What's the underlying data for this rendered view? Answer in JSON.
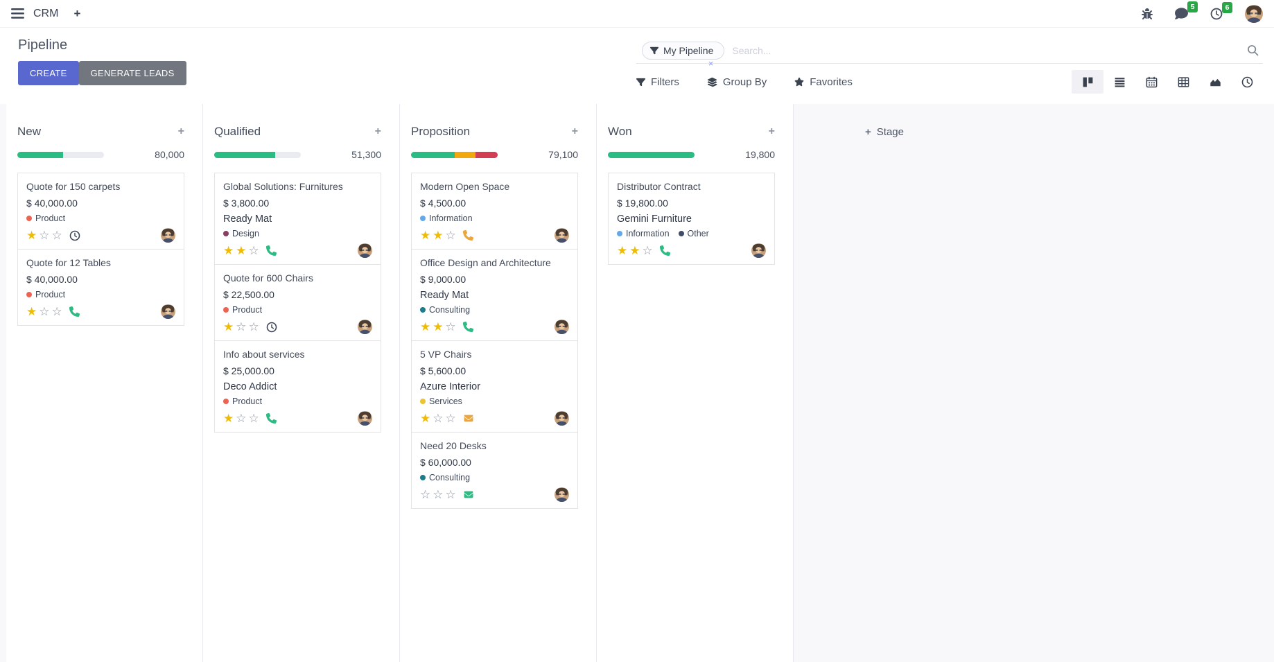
{
  "navbar": {
    "app_name": "CRM",
    "systray": {
      "messages_count": "5",
      "activities_count": "6"
    }
  },
  "control_panel": {
    "title": "Pipeline",
    "create_label": "CREATE",
    "generate_leads_label": "GENERATE LEADS",
    "search": {
      "facet_label": "My Pipeline",
      "placeholder": "Search..."
    },
    "filters_label": "Filters",
    "group_by_label": "Group By",
    "favorites_label": "Favorites",
    "view_switcher": [
      "kanban",
      "list",
      "calendar",
      "pivot",
      "graph",
      "activity"
    ],
    "active_view": "kanban"
  },
  "icons": {
    "plus": "+",
    "close_glyph": "×",
    "star_filled": "★",
    "star_empty": "☆"
  },
  "colors": {
    "accent": "#5968cf",
    "green": "#2abc83",
    "yellow": "#f0a80d",
    "red": "#d23f53",
    "star_gold": "#f0bc00",
    "badge_green": "#28a745"
  },
  "board": {
    "add_stage_label": "Stage",
    "columns": [
      {
        "name": "New",
        "total": "80,000",
        "progress": [
          {
            "color": "#2abc83",
            "pct": 53
          }
        ],
        "cards": [
          {
            "title": "Quote for 150 carpets",
            "amount": "$ 40,000.00",
            "tags": [
              {
                "label": "Product",
                "color": "#ec6352"
              }
            ],
            "stars": 1,
            "activity": {
              "icon": "clock-icon",
              "color": "#3d4657"
            }
          },
          {
            "title": "Quote for 12 Tables",
            "amount": "$ 40,000.00",
            "tags": [
              {
                "label": "Product",
                "color": "#ec6352"
              }
            ],
            "stars": 1,
            "activity": {
              "icon": "phone-icon",
              "color": "#2abc83"
            }
          }
        ]
      },
      {
        "name": "Qualified",
        "total": "51,300",
        "progress": [
          {
            "color": "#2abc83",
            "pct": 70
          }
        ],
        "cards": [
          {
            "title": "Global Solutions: Furnitures",
            "amount": "$ 3,800.00",
            "partner": "Ready Mat",
            "tags": [
              {
                "label": "Design",
                "color": "#8a3e63"
              }
            ],
            "stars": 2,
            "activity": {
              "icon": "phone-icon",
              "color": "#2abc83"
            }
          },
          {
            "title": "Quote for 600 Chairs",
            "amount": "$ 22,500.00",
            "tags": [
              {
                "label": "Product",
                "color": "#ec6352"
              }
            ],
            "stars": 1,
            "activity": {
              "icon": "clock-icon",
              "color": "#3d4657"
            }
          },
          {
            "title": "Info about services",
            "amount": "$ 25,000.00",
            "partner": "Deco Addict",
            "tags": [
              {
                "label": "Product",
                "color": "#ec6352"
              }
            ],
            "stars": 1,
            "activity": {
              "icon": "phone-icon",
              "color": "#2abc83"
            }
          }
        ]
      },
      {
        "name": "Proposition",
        "total": "79,100",
        "progress": [
          {
            "color": "#2abc83",
            "pct": 50
          },
          {
            "color": "#f0a80d",
            "pct": 24
          },
          {
            "color": "#d23f53",
            "pct": 26
          }
        ],
        "cards": [
          {
            "title": "Modern Open Space",
            "amount": "$ 4,500.00",
            "tags": [
              {
                "label": "Information",
                "color": "#62a8ea"
              }
            ],
            "stars": 2,
            "activity": {
              "icon": "phone-icon",
              "color": "#eda63c"
            }
          },
          {
            "title": "Office Design and Architecture",
            "amount": "$ 9,000.00",
            "partner": "Ready Mat",
            "tags": [
              {
                "label": "Consulting",
                "color": "#1b7d8c"
              }
            ],
            "stars": 2,
            "activity": {
              "icon": "phone-icon",
              "color": "#2abc83"
            }
          },
          {
            "title": "5 VP Chairs",
            "amount": "$ 5,600.00",
            "partner": "Azure Interior",
            "tags": [
              {
                "label": "Services",
                "color": "#ecc332"
              }
            ],
            "stars": 1,
            "activity": {
              "icon": "mail-icon",
              "color": "#eda63c"
            }
          },
          {
            "title": "Need 20 Desks",
            "amount": "$ 60,000.00",
            "tags": [
              {
                "label": "Consulting",
                "color": "#1b7d8c"
              }
            ],
            "stars": 0,
            "activity": {
              "icon": "mail-icon",
              "color": "#2abc83"
            }
          }
        ]
      },
      {
        "name": "Won",
        "total": "19,800",
        "progress": [
          {
            "color": "#2abc83",
            "pct": 100
          }
        ],
        "cards": [
          {
            "title": "Distributor Contract",
            "amount": "$ 19,800.00",
            "partner": "Gemini Furniture",
            "tags": [
              {
                "label": "Information",
                "color": "#62a8ea"
              },
              {
                "label": "Other",
                "color": "#3f4c68"
              }
            ],
            "stars": 2,
            "activity": {
              "icon": "phone-icon",
              "color": "#2abc83"
            }
          }
        ]
      }
    ]
  }
}
